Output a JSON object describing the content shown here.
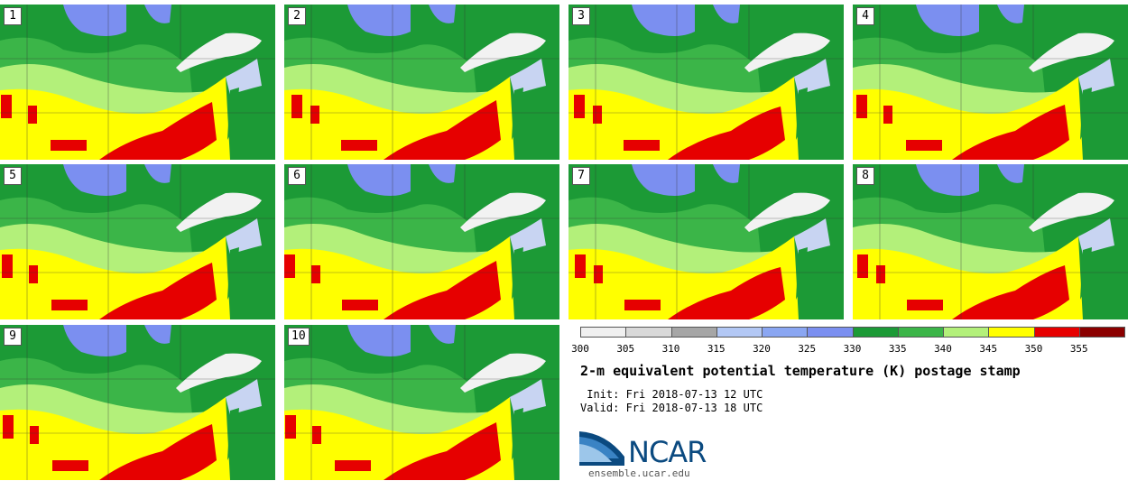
{
  "panels": [
    {
      "label": "1"
    },
    {
      "label": "2"
    },
    {
      "label": "3"
    },
    {
      "label": "4"
    },
    {
      "label": "5"
    },
    {
      "label": "6"
    },
    {
      "label": "7"
    },
    {
      "label": "8"
    },
    {
      "label": "9"
    },
    {
      "label": "10"
    }
  ],
  "colorbar": {
    "ticks": [
      "300",
      "305",
      "310",
      "315",
      "320",
      "325",
      "330",
      "335",
      "340",
      "345",
      "350",
      "355"
    ],
    "colors": [
      "#f0f0f0",
      "#d9d9d9",
      "#a6a6a6",
      "#b3c8f5",
      "#8aa6f2",
      "#7b8ff0",
      "#1c9a36",
      "#3bb548",
      "#b3f07a",
      "#ffff00",
      "#e60000",
      "#8b0000"
    ]
  },
  "title": "2-m equivalent potential temperature (K) postage stamp",
  "init": " Init: Fri 2018-07-13 12 UTC",
  "valid": "Valid: Fri 2018-07-13 18 UTC",
  "logo": {
    "text": "NCAR",
    "url": "ensemble.ucar.edu"
  },
  "colors": {
    "lake": "#f2f2f2",
    "dark_green": "#1c9a36",
    "mid_green": "#3bb548",
    "light_green": "#b3f07a",
    "yellow": "#ffff00",
    "red": "#e60000",
    "blue": "#7b8ff0"
  }
}
